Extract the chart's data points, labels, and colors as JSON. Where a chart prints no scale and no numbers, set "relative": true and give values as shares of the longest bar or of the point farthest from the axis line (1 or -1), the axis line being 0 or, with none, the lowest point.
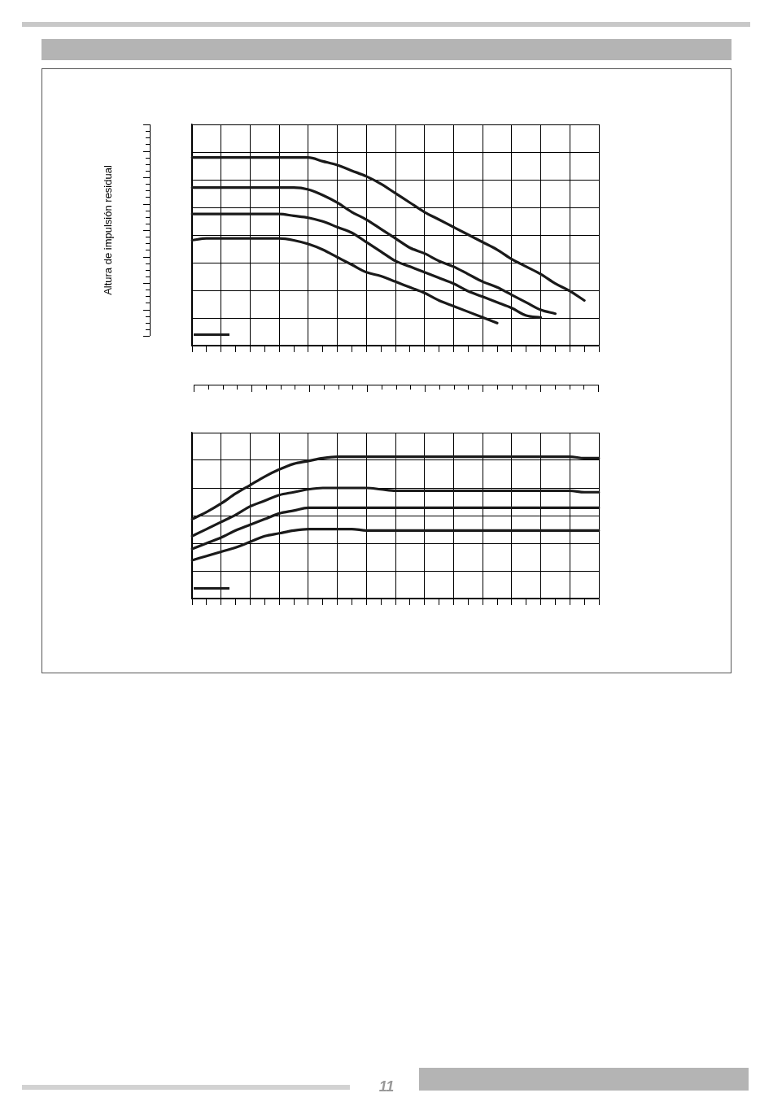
{
  "chart_data": [
    {
      "type": "line",
      "relative": true,
      "grid": true,
      "marker": "none",
      "ylabel": "Altura de impulsión residual",
      "categories": [
        null,
        null,
        null,
        null,
        null,
        null,
        null,
        null,
        null,
        null,
        null,
        null,
        null,
        null,
        null,
        null,
        null,
        null,
        null,
        null,
        null,
        null,
        null,
        null,
        null,
        null,
        null,
        null,
        null
      ],
      "series": [
        {
          "color": "#1a1a1a",
          "values": [
            1.0,
            1.0,
            1.0,
            1.0,
            1.0,
            1.0,
            1.0,
            1.0,
            1.0,
            0.98,
            0.96,
            0.93,
            0.9,
            0.86,
            0.81,
            0.76,
            0.71,
            0.67,
            0.63,
            0.59,
            0.55,
            0.51,
            0.46,
            0.42,
            0.38,
            0.33,
            0.29,
            0.24,
            null
          ]
        },
        {
          "color": "#1a1a1a",
          "values": [
            0.84,
            0.84,
            0.84,
            0.84,
            0.84,
            0.84,
            0.84,
            0.84,
            0.83,
            0.8,
            0.76,
            0.71,
            0.67,
            0.62,
            0.57,
            0.52,
            0.49,
            0.45,
            0.42,
            0.38,
            0.34,
            0.31,
            0.27,
            0.23,
            0.19,
            0.17,
            null,
            null,
            null
          ]
        },
        {
          "color": "#1a1a1a",
          "values": [
            0.7,
            0.7,
            0.7,
            0.7,
            0.7,
            0.7,
            0.7,
            0.69,
            0.68,
            0.66,
            0.63,
            0.6,
            0.55,
            0.5,
            0.45,
            0.42,
            0.39,
            0.36,
            0.33,
            0.29,
            0.26,
            0.23,
            0.2,
            0.16,
            0.15,
            null,
            null,
            null,
            null
          ]
        },
        {
          "color": "#1a1a1a",
          "values": [
            0.56,
            0.57,
            0.57,
            0.57,
            0.57,
            0.57,
            0.57,
            0.56,
            0.54,
            0.51,
            0.47,
            0.43,
            0.39,
            0.37,
            0.34,
            0.31,
            0.28,
            0.24,
            0.21,
            0.18,
            0.15,
            0.12,
            null,
            null,
            null,
            null,
            null,
            null,
            null
          ]
        }
      ]
    },
    {
      "type": "line",
      "relative": true,
      "grid": true,
      "marker": "none",
      "annotations": [
        "11"
      ],
      "categories": [
        null,
        null,
        null,
        null,
        null,
        null,
        null,
        null,
        null,
        null,
        null,
        null,
        null,
        null,
        null,
        null,
        null,
        null,
        null,
        null,
        null,
        null,
        null,
        null,
        null,
        null,
        null,
        null,
        null
      ],
      "series": [
        {
          "color": "#1a1a1a",
          "values": [
            0.56,
            0.61,
            0.67,
            0.74,
            0.8,
            0.86,
            0.91,
            0.95,
            0.97,
            0.99,
            1.0,
            1.0,
            1.0,
            1.0,
            1.0,
            1.0,
            1.0,
            1.0,
            1.0,
            1.0,
            1.0,
            1.0,
            1.0,
            1.0,
            1.0,
            1.0,
            1.0,
            0.99,
            0.99
          ]
        },
        {
          "color": "#1a1a1a",
          "values": [
            0.44,
            0.49,
            0.54,
            0.59,
            0.65,
            0.69,
            0.73,
            0.75,
            0.77,
            0.78,
            0.78,
            0.78,
            0.78,
            0.77,
            0.76,
            0.76,
            0.76,
            0.76,
            0.76,
            0.76,
            0.76,
            0.76,
            0.76,
            0.76,
            0.76,
            0.76,
            0.76,
            0.75,
            0.75
          ]
        },
        {
          "color": "#1a1a1a",
          "values": [
            0.35,
            0.39,
            0.43,
            0.48,
            0.52,
            0.56,
            0.6,
            0.62,
            0.64,
            0.64,
            0.64,
            0.64,
            0.64,
            0.64,
            0.64,
            0.64,
            0.64,
            0.64,
            0.64,
            0.64,
            0.64,
            0.64,
            0.64,
            0.64,
            0.64,
            0.64,
            0.64,
            0.64,
            0.64
          ]
        },
        {
          "color": "#1a1a1a",
          "values": [
            0.27,
            0.3,
            0.33,
            0.36,
            0.4,
            0.44,
            0.46,
            0.48,
            0.49,
            0.49,
            0.49,
            0.49,
            0.48,
            0.48,
            0.48,
            0.48,
            0.48,
            0.48,
            0.48,
            0.48,
            0.48,
            0.48,
            0.48,
            0.48,
            0.48,
            0.48,
            0.48,
            0.48,
            0.48
          ]
        }
      ]
    }
  ]
}
